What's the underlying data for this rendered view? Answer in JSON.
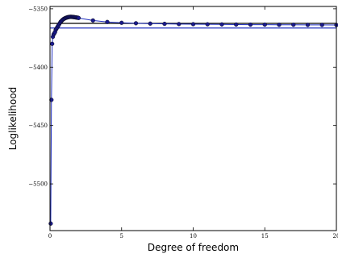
{
  "chart_data": {
    "type": "line",
    "xlabel": "Degree of freedom",
    "ylabel": "Loglikelihood",
    "xlim": [
      0,
      20
    ],
    "ylim": [
      -5540,
      -5348
    ],
    "x_ticks": [
      0,
      5,
      10,
      15,
      20
    ],
    "x_tick_labels": [
      "0",
      "5",
      "10",
      "15",
      "20"
    ],
    "y_ticks": [
      -5350,
      -5400,
      -5450,
      -5500
    ],
    "y_tick_labels": [
      "−5350",
      "−5400",
      "−5450",
      "−5500"
    ],
    "grid": false,
    "legend": "none",
    "series": [
      {
        "color": "#1a1a8c",
        "marker": "circle",
        "x": [
          0.05,
          0.1,
          0.15,
          0.2,
          0.25,
          0.3,
          0.35,
          0.4,
          0.45,
          0.5,
          0.55,
          0.6,
          0.65,
          0.7,
          0.75,
          0.8,
          0.85,
          0.9,
          0.95,
          1.0,
          1.05,
          1.1,
          1.15,
          1.2,
          1.25,
          1.3,
          1.35,
          1.4,
          1.45,
          1.5,
          1.55,
          1.6,
          1.65,
          1.7,
          1.75,
          1.8,
          1.85,
          1.9,
          1.95,
          2.0,
          3,
          4,
          5,
          6,
          7,
          8,
          9,
          10,
          11,
          12,
          13,
          14,
          15,
          16,
          17,
          18,
          19,
          20
        ],
        "y": [
          -5534,
          -5428,
          -5380,
          -5374,
          -5372,
          -5371,
          -5370,
          -5368,
          -5367,
          -5366,
          -5365,
          -5364,
          -5363,
          -5362,
          -5361,
          -5360.5,
          -5359.8,
          -5359.2,
          -5358.8,
          -5358.4,
          -5358.1,
          -5357.8,
          -5357.6,
          -5357.4,
          -5357.2,
          -5357.1,
          -5357.0,
          -5356.9,
          -5356.9,
          -5356.9,
          -5357.0,
          -5357.0,
          -5357.1,
          -5357.2,
          -5357.3,
          -5357.4,
          -5357.5,
          -5357.6,
          -5357.7,
          -5357.9,
          -5360.0,
          -5361.3,
          -5362.0,
          -5362.4,
          -5362.7,
          -5362.9,
          -5363.1,
          -5363.2,
          -5363.3,
          -5363.4,
          -5363.5,
          -5363.6,
          -5363.6,
          -5363.7,
          -5363.7,
          -5363.8,
          -5363.8,
          -5363.9
        ]
      }
    ],
    "reference_lines": [
      {
        "y": -5362.5,
        "color": "#000000"
      },
      {
        "y": -5366.5,
        "color": "#1f2fbf"
      }
    ]
  }
}
